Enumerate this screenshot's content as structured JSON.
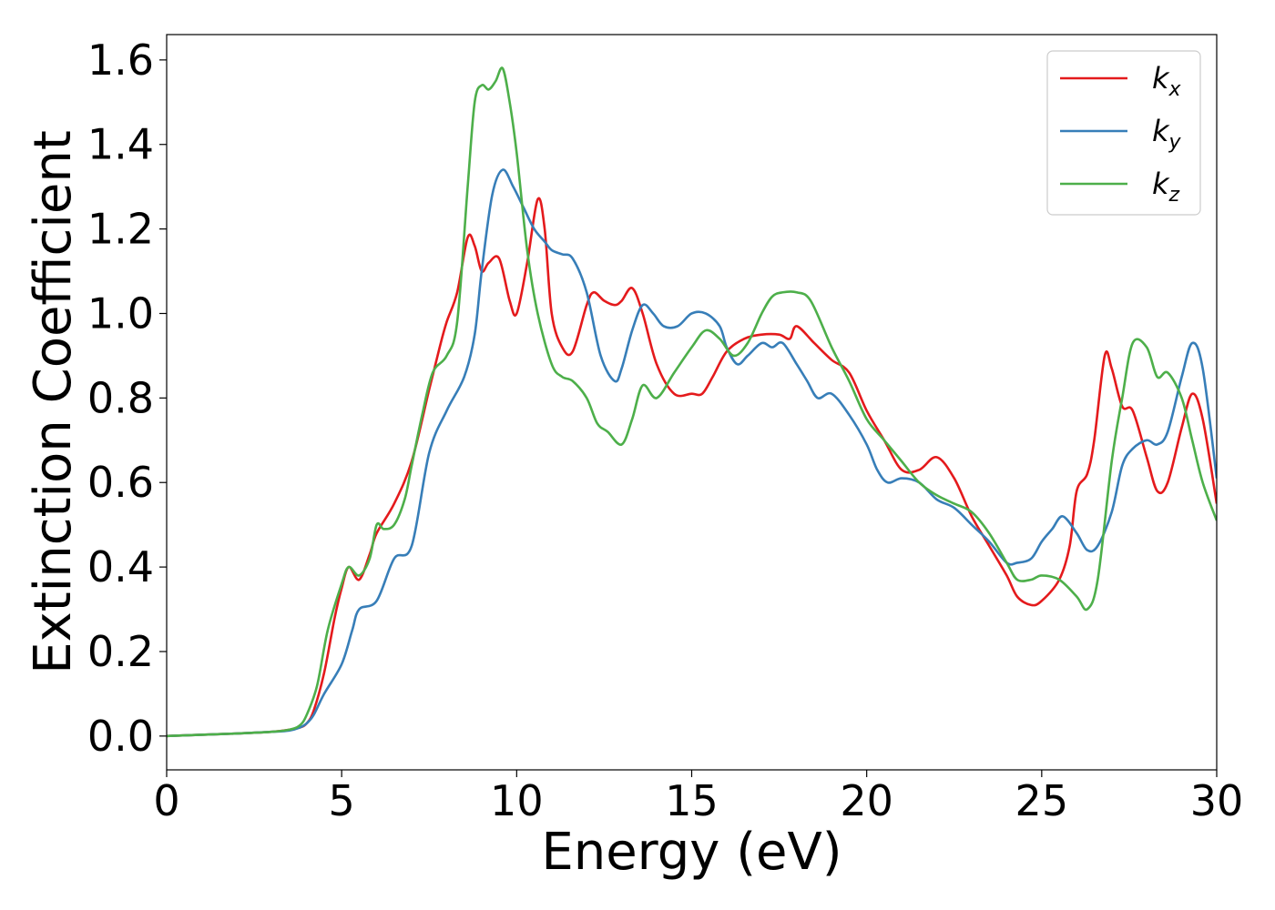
{
  "chart_data": {
    "type": "line",
    "xlabel": "Energy (eV)",
    "ylabel": "Extinction Coefficient",
    "xlim": [
      0,
      30
    ],
    "ylim": [
      -0.08,
      1.66
    ],
    "x_ticks": [
      "0",
      "5",
      "10",
      "15",
      "20",
      "25",
      "30"
    ],
    "y_ticks": [
      "0.0",
      "0.2",
      "0.4",
      "0.6",
      "0.8",
      "1.0",
      "1.2",
      "1.4",
      "1.6"
    ],
    "grid": false,
    "legend_position": "top-right",
    "series": [
      {
        "name": "kx",
        "label_base": "k",
        "label_sub": "x",
        "color": "#e41a1c",
        "x": [
          0,
          1,
          2,
          3,
          3.5,
          3.8,
          4.0,
          4.2,
          4.5,
          4.8,
          5.0,
          5.2,
          5.5,
          5.8,
          6.0,
          6.5,
          7.0,
          7.5,
          7.8,
          8.0,
          8.3,
          8.6,
          8.8,
          9.0,
          9.2,
          9.5,
          9.8,
          10.0,
          10.3,
          10.6,
          10.8,
          11.0,
          11.3,
          11.6,
          12.0,
          12.2,
          12.5,
          12.8,
          13.0,
          13.3,
          13.6,
          14.0,
          14.5,
          15.0,
          15.3,
          15.6,
          16.0,
          16.5,
          17.0,
          17.5,
          17.8,
          18.0,
          18.5,
          19.0,
          19.5,
          20.0,
          20.5,
          21.0,
          21.5,
          22.0,
          22.5,
          23.0,
          23.5,
          24.0,
          24.3,
          24.7,
          25.0,
          25.5,
          25.8,
          26.0,
          26.3,
          26.5,
          26.8,
          27.0,
          27.3,
          27.6,
          28.0,
          28.3,
          28.6,
          29.0,
          29.3,
          29.6,
          30.0
        ],
        "values": [
          0,
          0.003,
          0.006,
          0.01,
          0.015,
          0.02,
          0.03,
          0.06,
          0.15,
          0.28,
          0.35,
          0.4,
          0.37,
          0.43,
          0.48,
          0.55,
          0.65,
          0.82,
          0.92,
          0.98,
          1.05,
          1.18,
          1.16,
          1.1,
          1.12,
          1.13,
          1.03,
          1.0,
          1.12,
          1.27,
          1.2,
          1.0,
          0.92,
          0.91,
          1.02,
          1.05,
          1.03,
          1.02,
          1.03,
          1.06,
          1.0,
          0.88,
          0.81,
          0.81,
          0.81,
          0.85,
          0.91,
          0.94,
          0.95,
          0.95,
          0.94,
          0.97,
          0.93,
          0.89,
          0.86,
          0.77,
          0.7,
          0.63,
          0.63,
          0.66,
          0.61,
          0.52,
          0.45,
          0.38,
          0.33,
          0.31,
          0.32,
          0.37,
          0.45,
          0.58,
          0.62,
          0.7,
          0.9,
          0.87,
          0.78,
          0.77,
          0.66,
          0.58,
          0.6,
          0.73,
          0.81,
          0.75,
          0.55
        ]
      },
      {
        "name": "ky",
        "label_base": "k",
        "label_sub": "y",
        "color": "#377eb8",
        "x": [
          0,
          1,
          2,
          3,
          3.5,
          3.8,
          4.0,
          4.2,
          4.5,
          5.0,
          5.3,
          5.5,
          6.0,
          6.5,
          7.0,
          7.5,
          8.0,
          8.5,
          8.8,
          9.0,
          9.3,
          9.6,
          9.9,
          10.2,
          10.5,
          10.8,
          11.0,
          11.3,
          11.6,
          12.0,
          12.4,
          12.8,
          13.0,
          13.3,
          13.6,
          13.9,
          14.2,
          14.6,
          15.0,
          15.4,
          15.8,
          16.0,
          16.3,
          16.6,
          17.0,
          17.3,
          17.6,
          18.0,
          18.3,
          18.6,
          19.0,
          19.5,
          20.0,
          20.3,
          20.6,
          21.0,
          21.5,
          22.0,
          22.5,
          23.0,
          23.5,
          24.0,
          24.3,
          24.7,
          25.0,
          25.3,
          25.6,
          26.0,
          26.3,
          26.6,
          27.0,
          27.3,
          27.6,
          28.0,
          28.3,
          28.6,
          29.0,
          29.3,
          29.6,
          30.0
        ],
        "values": [
          0,
          0.003,
          0.006,
          0.01,
          0.013,
          0.02,
          0.03,
          0.05,
          0.1,
          0.17,
          0.25,
          0.3,
          0.32,
          0.42,
          0.45,
          0.67,
          0.77,
          0.85,
          0.95,
          1.1,
          1.28,
          1.34,
          1.3,
          1.25,
          1.2,
          1.17,
          1.15,
          1.14,
          1.13,
          1.05,
          0.9,
          0.84,
          0.87,
          0.96,
          1.02,
          1.0,
          0.97,
          0.97,
          1.0,
          1.0,
          0.97,
          0.92,
          0.88,
          0.9,
          0.93,
          0.92,
          0.93,
          0.88,
          0.84,
          0.8,
          0.81,
          0.76,
          0.69,
          0.63,
          0.6,
          0.61,
          0.6,
          0.56,
          0.54,
          0.5,
          0.46,
          0.41,
          0.41,
          0.42,
          0.46,
          0.49,
          0.52,
          0.48,
          0.44,
          0.45,
          0.53,
          0.64,
          0.68,
          0.7,
          0.69,
          0.72,
          0.85,
          0.93,
          0.87,
          0.61
        ]
      },
      {
        "name": "kz",
        "label_base": "k",
        "label_sub": "z",
        "color": "#4daf4a",
        "x": [
          0,
          1,
          2,
          3,
          3.5,
          3.8,
          4.0,
          4.3,
          4.6,
          5.0,
          5.2,
          5.5,
          5.8,
          6.0,
          6.2,
          6.5,
          6.8,
          7.0,
          7.3,
          7.6,
          8.0,
          8.3,
          8.6,
          8.8,
          9.0,
          9.2,
          9.4,
          9.6,
          9.8,
          10.0,
          10.3,
          10.6,
          11.0,
          11.3,
          11.6,
          12.0,
          12.3,
          12.6,
          13.0,
          13.3,
          13.6,
          14.0,
          14.5,
          15.0,
          15.4,
          15.8,
          16.2,
          16.6,
          17.0,
          17.3,
          17.6,
          18.0,
          18.4,
          19.0,
          19.5,
          20.0,
          20.5,
          21.0,
          21.5,
          22.0,
          22.5,
          23.0,
          23.5,
          24.0,
          24.3,
          24.7,
          25.0,
          25.5,
          26.0,
          26.3,
          26.6,
          27.0,
          27.3,
          27.6,
          28.0,
          28.3,
          28.6,
          29.0,
          29.3,
          29.6,
          30.0
        ],
        "values": [
          0,
          0.003,
          0.006,
          0.01,
          0.015,
          0.025,
          0.05,
          0.12,
          0.25,
          0.36,
          0.4,
          0.38,
          0.42,
          0.5,
          0.49,
          0.5,
          0.56,
          0.64,
          0.76,
          0.86,
          0.9,
          0.98,
          1.3,
          1.5,
          1.54,
          1.53,
          1.55,
          1.58,
          1.5,
          1.38,
          1.15,
          1.0,
          0.88,
          0.85,
          0.84,
          0.8,
          0.74,
          0.72,
          0.69,
          0.75,
          0.83,
          0.8,
          0.86,
          0.92,
          0.96,
          0.94,
          0.9,
          0.93,
          1.0,
          1.04,
          1.05,
          1.05,
          1.03,
          0.92,
          0.84,
          0.75,
          0.7,
          0.65,
          0.6,
          0.57,
          0.55,
          0.53,
          0.48,
          0.41,
          0.37,
          0.37,
          0.38,
          0.37,
          0.33,
          0.3,
          0.37,
          0.65,
          0.8,
          0.93,
          0.92,
          0.85,
          0.86,
          0.8,
          0.7,
          0.6,
          0.51
        ]
      }
    ]
  }
}
